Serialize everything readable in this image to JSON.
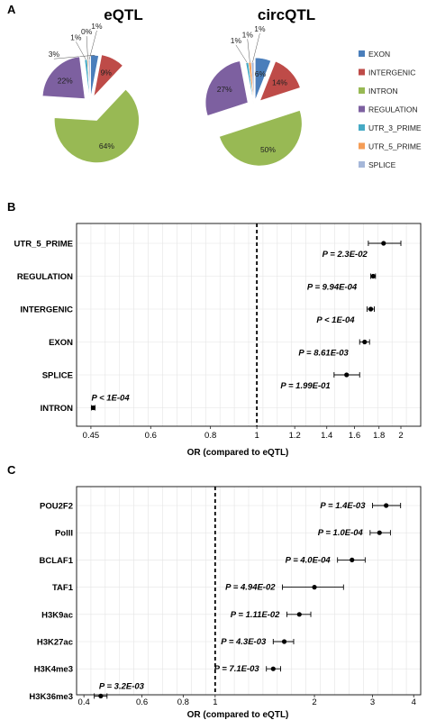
{
  "panel_labels": {
    "a": "A",
    "b": "B",
    "c": "C"
  },
  "chart_data": [
    {
      "type": "pie",
      "panel": "A",
      "title": "eQTL",
      "slices": [
        {
          "category": "EXON",
          "value": 3,
          "label": "3%"
        },
        {
          "category": "INTERGENIC",
          "value": 9,
          "label": "9%"
        },
        {
          "category": "INTRON",
          "value": 64,
          "label": "64%"
        },
        {
          "category": "REGULATION",
          "value": 22,
          "label": "22%"
        },
        {
          "category": "UTR_3_PRIME",
          "value": 1,
          "label": "1%"
        },
        {
          "category": "UTR_5_PRIME",
          "value": 0.4,
          "label": "0%"
        },
        {
          "category": "SPLICE",
          "value": 0.6,
          "label": "1%"
        }
      ]
    },
    {
      "type": "pie",
      "panel": "A",
      "title": "circQTL",
      "slices": [
        {
          "category": "EXON",
          "value": 6,
          "label": "6%"
        },
        {
          "category": "INTERGENIC",
          "value": 14,
          "label": "14%"
        },
        {
          "category": "INTRON",
          "value": 50,
          "label": "50%"
        },
        {
          "category": "REGULATION",
          "value": 27,
          "label": "27%"
        },
        {
          "category": "UTR_3_PRIME",
          "value": 1,
          "label": "1%"
        },
        {
          "category": "UTR_5_PRIME",
          "value": 1,
          "label": "1%"
        },
        {
          "category": "SPLICE",
          "value": 1,
          "label": "1%"
        }
      ]
    },
    {
      "type": "forest",
      "panel": "B",
      "xlabel": "OR (compared to eQTL)",
      "xscale": "log",
      "xlim": [
        0.42,
        2.2
      ],
      "xticks": [
        0.45,
        0.6,
        0.8,
        1,
        1.2,
        1.4,
        1.6,
        1.8,
        2
      ],
      "xtick_labels": [
        "0.45",
        "0.6",
        "0.8",
        "1",
        "1.2",
        "1.4",
        "1.6",
        "1.8",
        "2"
      ],
      "reference_line": 1,
      "grid": true,
      "rows": [
        {
          "label": "UTR_5_PRIME",
          "or": 1.84,
          "lo": 1.71,
          "hi": 2.0,
          "p": "P = 2.3E-02"
        },
        {
          "label": "REGULATION",
          "or": 1.75,
          "lo": 1.73,
          "hi": 1.77,
          "p": "P = 9.94E-04"
        },
        {
          "label": "INTERGENIC",
          "or": 1.73,
          "lo": 1.7,
          "hi": 1.76,
          "p": "P < 1E-04"
        },
        {
          "label": "EXON",
          "or": 1.68,
          "lo": 1.64,
          "hi": 1.72,
          "p": "P = 8.61E-03"
        },
        {
          "label": "SPLICE",
          "or": 1.54,
          "lo": 1.45,
          "hi": 1.64,
          "p": "P = 1.99E-01"
        },
        {
          "label": "INTRON",
          "or": 0.455,
          "lo": 0.451,
          "hi": 0.459,
          "p": "P < 1E-04"
        }
      ]
    },
    {
      "type": "forest",
      "panel": "C",
      "xlabel": "OR (compared to eQTL)",
      "xscale": "log",
      "xlim": [
        0.38,
        4.2
      ],
      "xticks": [
        0.4,
        0.6,
        0.8,
        1,
        2,
        3,
        4
      ],
      "xtick_labels": [
        "0.4",
        "0.6",
        "0.8",
        "1",
        "2",
        "3",
        "4"
      ],
      "reference_line": 1,
      "grid": true,
      "rows": [
        {
          "label": "POU2F2",
          "or": 3.3,
          "lo": 3.0,
          "hi": 3.65,
          "p": "P = 1.4E-03"
        },
        {
          "label": "PolII",
          "or": 3.15,
          "lo": 2.95,
          "hi": 3.4,
          "p": "P = 1.0E-04"
        },
        {
          "label": "BCLAF1",
          "or": 2.6,
          "lo": 2.35,
          "hi": 2.85,
          "p": "P = 4.0E-04"
        },
        {
          "label": "TAF1",
          "or": 2.0,
          "lo": 1.6,
          "hi": 2.45,
          "p": "P = 4.94E-02"
        },
        {
          "label": "H3K9ac",
          "or": 1.8,
          "lo": 1.65,
          "hi": 1.95,
          "p": "P = 1.11E-02"
        },
        {
          "label": "H3K27ac",
          "or": 1.62,
          "lo": 1.5,
          "hi": 1.73,
          "p": "P = 4.3E-03"
        },
        {
          "label": "H3K4me3",
          "or": 1.5,
          "lo": 1.43,
          "hi": 1.58,
          "p": "P = 7.1E-03"
        },
        {
          "label": "H3K36me3",
          "or": 0.45,
          "lo": 0.43,
          "hi": 0.47,
          "p": "P = 3.2E-03"
        }
      ]
    }
  ],
  "legend": [
    {
      "category": "EXON",
      "label": "EXON",
      "color": "#4a7ebb"
    },
    {
      "category": "INTERGENIC",
      "label": "INTERGENIC",
      "color": "#be4b48"
    },
    {
      "category": "INTRON",
      "label": "INTRON",
      "color": "#98b954"
    },
    {
      "category": "REGULATION",
      "label": "REGULATION",
      "color": "#7d60a0"
    },
    {
      "category": "UTR_3_PRIME",
      "label": "UTR_3_PRIME",
      "color": "#46aac5"
    },
    {
      "category": "UTR_5_PRIME",
      "label": "UTR_5_PRIME",
      "color": "#f59d56"
    },
    {
      "category": "SPLICE",
      "label": "SPLICE",
      "color": "#a5b7d9"
    }
  ]
}
